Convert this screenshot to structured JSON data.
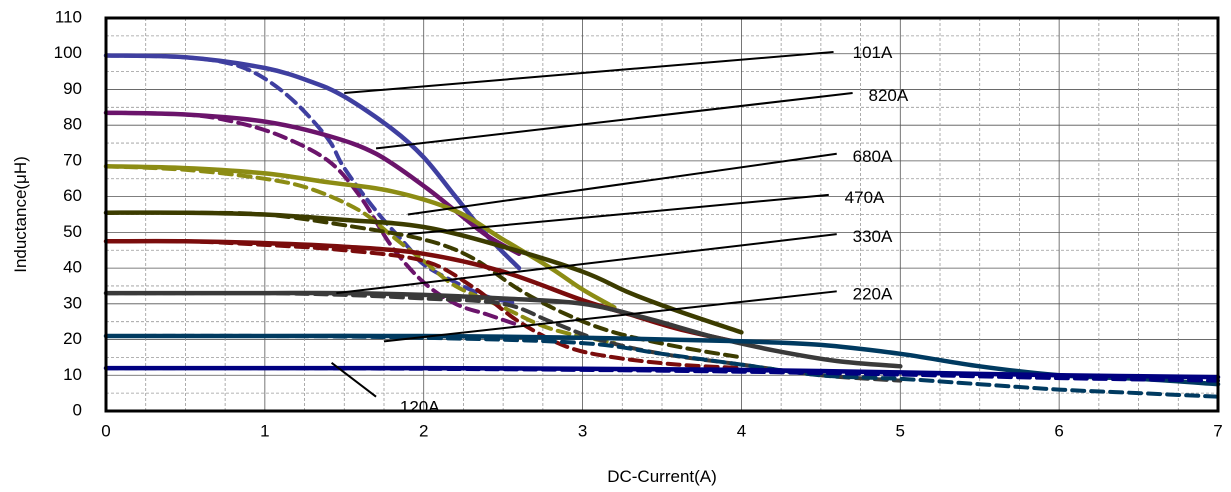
{
  "chart_data": {
    "type": "line",
    "title": "",
    "xlabel": "DC-Current(A)",
    "ylabel": "Inductance(μH)",
    "xlim": [
      0,
      7
    ],
    "ylim": [
      0,
      110
    ],
    "x_ticks": [
      "0",
      "1",
      "2",
      "3",
      "4",
      "5",
      "6",
      "7"
    ],
    "y_ticks": [
      "0",
      "10",
      "20",
      "30",
      "40",
      "50",
      "60",
      "70",
      "80",
      "90",
      "100",
      "110"
    ],
    "grid": true,
    "series": [
      {
        "name": "101A",
        "color": "#3F3FA0",
        "solid": [
          [
            0,
            99.5
          ],
          [
            0.5,
            99
          ],
          [
            1,
            96
          ],
          [
            1.3,
            92
          ],
          [
            1.5,
            88
          ],
          [
            1.8,
            79
          ],
          [
            2,
            71
          ],
          [
            2.2,
            60
          ],
          [
            2.4,
            49
          ],
          [
            2.6,
            40
          ]
        ],
        "dashed": [
          [
            0,
            99.5
          ],
          [
            0.5,
            99
          ],
          [
            0.8,
            97
          ],
          [
            1,
            93
          ],
          [
            1.2,
            86
          ],
          [
            1.4,
            76
          ],
          [
            1.5,
            68
          ],
          [
            1.7,
            56
          ],
          [
            1.9,
            46
          ],
          [
            2,
            41
          ],
          [
            2.2,
            36
          ],
          [
            2.4,
            32
          ],
          [
            2.6,
            30
          ]
        ]
      },
      {
        "name": "820A",
        "color": "#6B146B",
        "solid": [
          [
            0,
            83.5
          ],
          [
            0.5,
            83
          ],
          [
            1,
            81
          ],
          [
            1.4,
            77
          ],
          [
            1.7,
            72
          ],
          [
            2,
            63
          ],
          [
            2.2,
            56
          ],
          [
            2.4,
            49
          ],
          [
            2.6,
            44
          ]
        ],
        "dashed": [
          [
            0,
            83.5
          ],
          [
            0.5,
            83
          ],
          [
            0.8,
            81
          ],
          [
            1.1,
            77
          ],
          [
            1.4,
            70
          ],
          [
            1.6,
            60
          ],
          [
            1.8,
            46
          ],
          [
            2,
            36
          ],
          [
            2.2,
            30
          ],
          [
            2.4,
            27
          ],
          [
            2.6,
            24
          ]
        ]
      },
      {
        "name": "680A",
        "color": "#8C8C14",
        "solid": [
          [
            0,
            68.5
          ],
          [
            0.5,
            68
          ],
          [
            1,
            66.5
          ],
          [
            1.4,
            64
          ],
          [
            1.8,
            61.5
          ],
          [
            2.2,
            56
          ],
          [
            2.5,
            48
          ],
          [
            2.8,
            40
          ],
          [
            3,
            34
          ],
          [
            3.2,
            29
          ]
        ],
        "dashed": [
          [
            0,
            68.5
          ],
          [
            0.5,
            67.5
          ],
          [
            1,
            65
          ],
          [
            1.3,
            62
          ],
          [
            1.6,
            56
          ],
          [
            1.8,
            49
          ],
          [
            2,
            42
          ],
          [
            2.2,
            35
          ],
          [
            2.5,
            29
          ],
          [
            2.8,
            23
          ],
          [
            3.2,
            19
          ]
        ]
      },
      {
        "name": "470A",
        "color": "#3C3C00",
        "solid": [
          [
            0,
            55.5
          ],
          [
            0.5,
            55.5
          ],
          [
            1,
            55
          ],
          [
            1.5,
            53.5
          ],
          [
            2,
            51.5
          ],
          [
            2.5,
            46
          ],
          [
            3,
            39
          ],
          [
            3.3,
            33
          ],
          [
            3.6,
            28
          ],
          [
            4,
            22
          ]
        ],
        "dashed": [
          [
            0,
            55.5
          ],
          [
            0.5,
            55.5
          ],
          [
            1,
            55
          ],
          [
            1.5,
            52
          ],
          [
            2,
            48
          ],
          [
            2.3,
            43
          ],
          [
            2.6,
            34
          ],
          [
            2.9,
            27
          ],
          [
            3.2,
            22
          ],
          [
            3.6,
            18
          ],
          [
            4,
            15
          ]
        ]
      },
      {
        "name": "330A",
        "color": "#7A0C0C",
        "solid": [
          [
            0,
            47.5
          ],
          [
            0.5,
            47.5
          ],
          [
            1,
            47
          ],
          [
            1.5,
            46
          ],
          [
            2,
            44
          ],
          [
            2.5,
            39
          ],
          [
            3,
            31
          ],
          [
            3.3,
            27
          ],
          [
            3.6,
            23
          ],
          [
            4,
            19
          ]
        ],
        "dashed": [
          [
            0,
            47.5
          ],
          [
            0.5,
            47.5
          ],
          [
            1,
            46.5
          ],
          [
            1.5,
            45
          ],
          [
            2,
            42
          ],
          [
            2.3,
            35
          ],
          [
            2.6,
            25
          ],
          [
            2.9,
            18
          ],
          [
            3.2,
            15
          ],
          [
            3.6,
            13
          ],
          [
            4,
            12
          ]
        ]
      },
      {
        "name": "220A",
        "color": "#3A3A3A",
        "solid": [
          [
            0,
            33
          ],
          [
            0.5,
            33
          ],
          [
            1,
            33
          ],
          [
            1.5,
            33
          ],
          [
            2,
            32.5
          ],
          [
            2.5,
            31.5
          ],
          [
            3,
            30
          ],
          [
            3.4,
            26
          ],
          [
            3.8,
            21
          ],
          [
            4.2,
            17
          ],
          [
            4.6,
            14
          ],
          [
            5,
            12.5
          ]
        ],
        "dashed": [
          [
            0,
            33
          ],
          [
            0.5,
            33
          ],
          [
            1,
            33
          ],
          [
            1.5,
            32.5
          ],
          [
            2,
            31.5
          ],
          [
            2.5,
            30
          ],
          [
            2.8,
            25
          ],
          [
            3.1,
            20
          ],
          [
            3.5,
            16
          ],
          [
            4,
            13
          ],
          [
            4.5,
            10
          ],
          [
            5,
            8.5
          ]
        ]
      },
      {
        "name": "120A",
        "color": "#003A60",
        "solid": [
          [
            0,
            21
          ],
          [
            1,
            21
          ],
          [
            2,
            21
          ],
          [
            3,
            20.5
          ],
          [
            4,
            19.5
          ],
          [
            4.5,
            18.5
          ],
          [
            5,
            16
          ],
          [
            5.5,
            12.5
          ],
          [
            6,
            10
          ],
          [
            6.5,
            9
          ],
          [
            7,
            7.5
          ]
        ],
        "dashed": [
          [
            0,
            21
          ],
          [
            1,
            21
          ],
          [
            2,
            20.5
          ],
          [
            3,
            19
          ],
          [
            3.5,
            16
          ],
          [
            4,
            13
          ],
          [
            4.5,
            10
          ],
          [
            5,
            9
          ],
          [
            5.5,
            7.5
          ],
          [
            6,
            6
          ],
          [
            6.5,
            5
          ],
          [
            7,
            4
          ]
        ]
      },
      {
        "name": "",
        "color": "#000080",
        "solid": [
          [
            0,
            12
          ],
          [
            1,
            12
          ],
          [
            2,
            12
          ],
          [
            3,
            11.8
          ],
          [
            4,
            11.5
          ],
          [
            5,
            10.8
          ],
          [
            6,
            10
          ],
          [
            7,
            9.5
          ]
        ],
        "dashed": [
          [
            0,
            12
          ],
          [
            1,
            12
          ],
          [
            2,
            11.8
          ],
          [
            3,
            11.5
          ],
          [
            4,
            11
          ],
          [
            5,
            10.2
          ],
          [
            6,
            9.2
          ],
          [
            7,
            8.5
          ]
        ]
      }
    ],
    "annotations": [
      {
        "text": "101A",
        "from": [
          1.5,
          89
        ],
        "to": [
          4.58,
          100.5
        ],
        "label_at": [
          4.7,
          100
        ]
      },
      {
        "text": "820A",
        "from": [
          1.7,
          73.5
        ],
        "to": [
          4.7,
          89
        ],
        "label_at": [
          4.8,
          88
        ]
      },
      {
        "text": "680A",
        "from": [
          1.9,
          55
        ],
        "to": [
          4.6,
          72
        ],
        "label_at": [
          4.7,
          71
        ]
      },
      {
        "text": "470A",
        "from": [
          1.9,
          49.5
        ],
        "to": [
          4.55,
          60.5
        ],
        "label_at": [
          4.65,
          59.5
        ]
      },
      {
        "text": "330A",
        "from": [
          1.45,
          33
        ],
        "to": [
          4.6,
          49.5
        ],
        "label_at": [
          4.7,
          48.5
        ]
      },
      {
        "text": "220A",
        "from": [
          1.75,
          19.5
        ],
        "to": [
          4.6,
          33.5
        ],
        "label_at": [
          4.7,
          32.5
        ]
      },
      {
        "text": "120A",
        "from": [
          1.42,
          13.5
        ],
        "to": [
          1.7,
          4
        ],
        "label_at": [
          1.85,
          0.8
        ]
      }
    ]
  }
}
